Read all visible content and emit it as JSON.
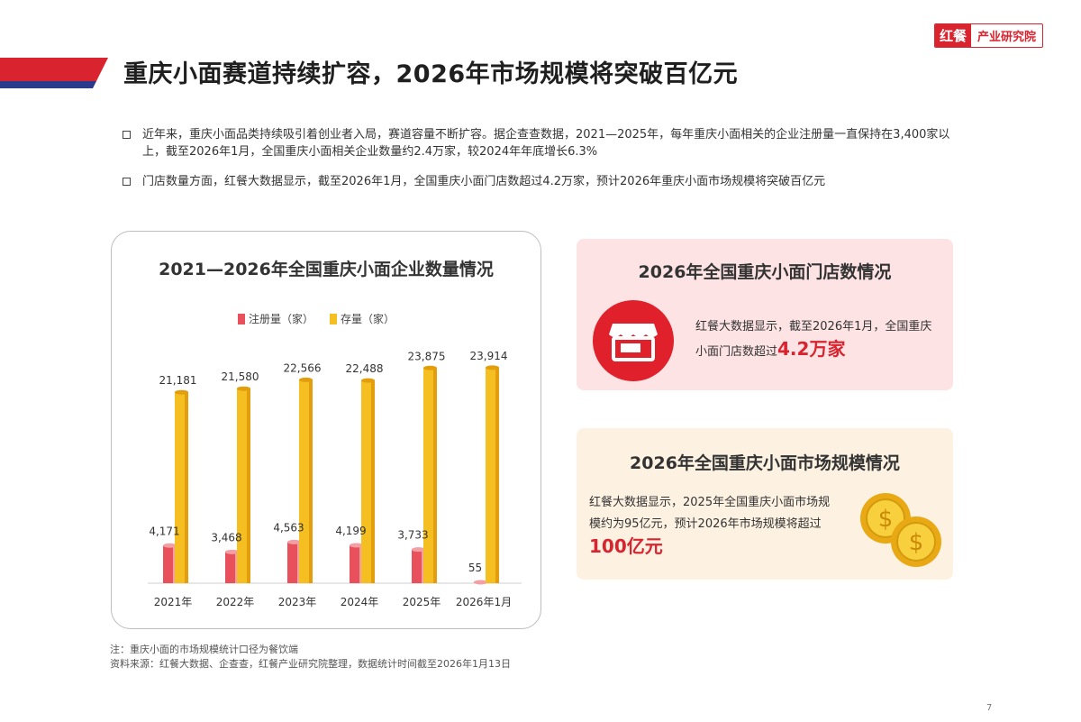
{
  "brand": {
    "mark": "红餐",
    "name": "产业研究院"
  },
  "page_title": "重庆小面赛道持续扩容，2026年市场规模将突破百亿元",
  "bullets": [
    "近年来，重庆小面品类持续吸引着创业者入局，赛道容量不断扩容。据企查查数据，2021—2025年，每年重庆小面相关的企业注册量一直保持在3,400家以上，截至2026年1月，全国重庆小面相关企业数量约2.4万家，较2024年年底增长6.3%",
    "门店数量方面，红餐大数据显示，截至2026年1月，全国重庆小面门店数超过4.2万家，预计2026年重庆小面市场规模将突破百亿元"
  ],
  "chart_data": {
    "type": "bar",
    "title": "2021—2026年全国重庆小面企业数量情况",
    "categories": [
      "2021年",
      "2022年",
      "2023年",
      "2024年",
      "2025年",
      "2026年1月"
    ],
    "series": [
      {
        "name": "注册量（家）",
        "values": [
          4171,
          3468,
          4563,
          4199,
          3733,
          55
        ],
        "labels": [
          "4,171",
          "3,468",
          "4,563",
          "4,199",
          "3,733",
          "55"
        ],
        "color": "#e8505b"
      },
      {
        "name": "存量（家）",
        "values": [
          21181,
          21580,
          22566,
          22488,
          23875,
          23914
        ],
        "labels": [
          "21,181",
          "21,580",
          "22,566",
          "22,488",
          "23,875",
          "23,914"
        ],
        "color": "#f5be21"
      }
    ],
    "ylim": [
      0,
      28000
    ],
    "grid": false,
    "legend": "top"
  },
  "panel_stores": {
    "title": "2026年全国重庆小面门店数情况",
    "text": "红餐大数据显示，截至2026年1月，全国重庆小面门店数超过",
    "highlight": "4.2万家",
    "icon": "storefront-icon"
  },
  "panel_market": {
    "title": "2026年全国重庆小面市场规模情况",
    "text": "红餐大数据显示，2025年全国重庆小面市场规模约为95亿元，预计2026年市场规模将超过",
    "highlight": "100亿元",
    "icon": "dollar-coins-icon"
  },
  "notes": {
    "note": "注：重庆小面的市场规模统计口径为餐饮端",
    "source": "资料来源：红餐大数据、企查查，红餐产业研究院整理，数据统计时间截至2026年1月13日"
  },
  "page_number": "7",
  "colors": {
    "accent_red": "#d9232e",
    "stripe_blue": "#2a3a8c",
    "bar_red": "#e8505b",
    "bar_yellow": "#f5be21"
  }
}
